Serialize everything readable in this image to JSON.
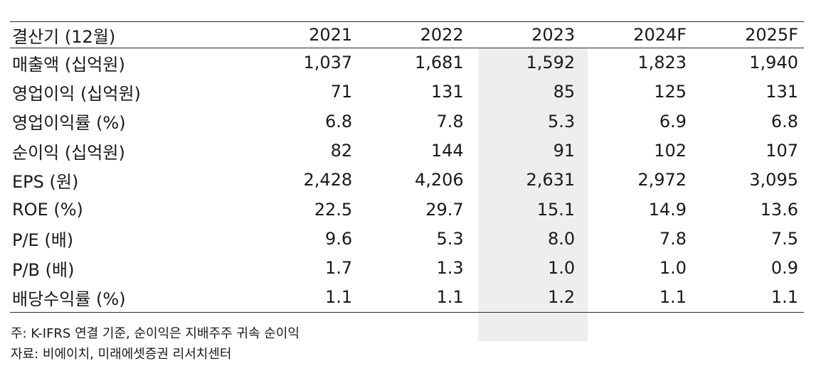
{
  "table": {
    "headers": [
      "결산기 (12월)",
      "2021",
      "2022",
      "2023",
      "2024F",
      "2025F"
    ],
    "rows": [
      {
        "label": "매출액 (십억원)",
        "values": [
          "1,037",
          "1,681",
          "1,592",
          "1,823",
          "1,940"
        ]
      },
      {
        "label": "영업이익 (십억원)",
        "values": [
          "71",
          "131",
          "85",
          "125",
          "131"
        ]
      },
      {
        "label": "영업이익률 (%)",
        "values": [
          "6.8",
          "7.8",
          "5.3",
          "6.9",
          "6.8"
        ]
      },
      {
        "label": "순이익 (십억원)",
        "values": [
          "82",
          "144",
          "91",
          "102",
          "107"
        ]
      },
      {
        "label": "EPS (원)",
        "values": [
          "2,428",
          "4,206",
          "2,631",
          "2,972",
          "3,095"
        ]
      },
      {
        "label": "ROE (%)",
        "values": [
          "22.5",
          "29.7",
          "15.1",
          "14.9",
          "13.6"
        ]
      },
      {
        "label": "P/E (배)",
        "values": [
          "9.6",
          "5.3",
          "8.0",
          "7.8",
          "7.5"
        ]
      },
      {
        "label": "P/B (배)",
        "values": [
          "1.7",
          "1.3",
          "1.0",
          "1.0",
          "0.9"
        ]
      },
      {
        "label": "배당수익률 (%)",
        "values": [
          "1.1",
          "1.1",
          "1.2",
          "1.1",
          "1.1"
        ]
      }
    ]
  },
  "notes": {
    "line1": "주: K-IFRS 연결 기준, 순이익은 지배주주 귀속 순이익",
    "line2": "자료: 비에이치, 미래에셋증권 리서치센터"
  },
  "colors": {
    "highlight_column": "#eeeeee",
    "rule_lines": "#2b2b2b",
    "text": "#1a1a1a"
  }
}
